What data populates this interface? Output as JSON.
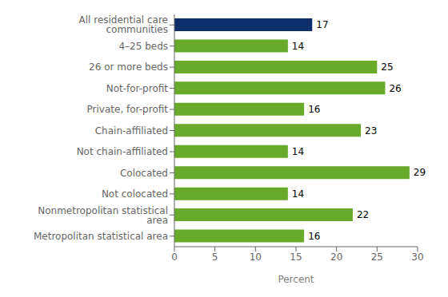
{
  "chart_data": {
    "type": "bar",
    "orientation": "horizontal",
    "categories": [
      "All residential care communities",
      "4–25 beds",
      "26 or more beds",
      "Not-for-profit",
      "Private, for-profit",
      "Chain-affiliated",
      "Not chain-affiliated",
      "Colocated",
      "Not colocated",
      "Nonmetropolitan statistical area",
      "Metropolitan statistical area"
    ],
    "values": [
      17,
      14,
      25,
      26,
      16,
      23,
      14,
      29,
      14,
      22,
      16
    ],
    "colors": [
      "#0d2d6b",
      "#6aaa2a",
      "#6aaa2a",
      "#6aaa2a",
      "#6aaa2a",
      "#6aaa2a",
      "#6aaa2a",
      "#6aaa2a",
      "#6aaa2a",
      "#6aaa2a",
      "#6aaa2a"
    ],
    "xlabel": "Percent",
    "xlim": [
      0,
      30
    ],
    "xticks": [
      0,
      5,
      10,
      15,
      20,
      25,
      30
    ],
    "data_labels": true,
    "grid": false
  }
}
